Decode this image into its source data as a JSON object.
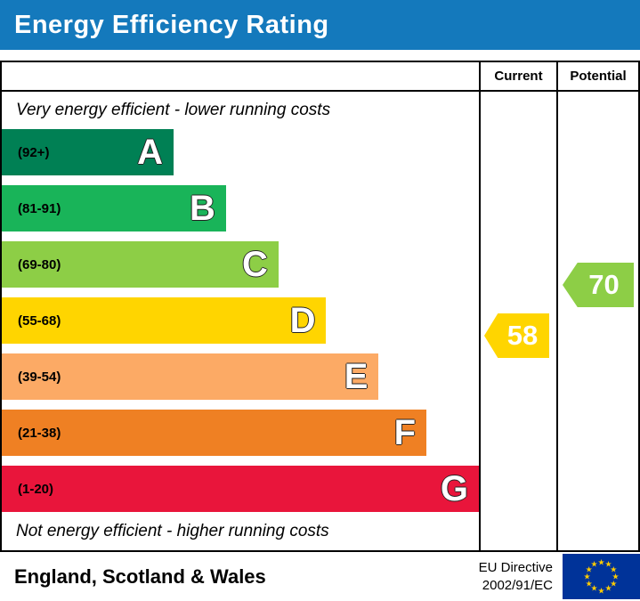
{
  "title": "Energy Efficiency Rating",
  "colors": {
    "banner": "#1479bc",
    "flag_bg": "#003399",
    "flag_star": "#ffcc00"
  },
  "table": {
    "current_header": "Current",
    "potential_header": "Potential"
  },
  "notes": {
    "top": "Very energy efficient - lower running costs",
    "bottom": "Not energy efficient - higher running costs"
  },
  "bands": [
    {
      "letter": "A",
      "range": "(92+)",
      "color": "#008054",
      "width_pct": 36
    },
    {
      "letter": "B",
      "range": "(81-91)",
      "color": "#19b459",
      "width_pct": 47
    },
    {
      "letter": "C",
      "range": "(69-80)",
      "color": "#8dce46",
      "width_pct": 58
    },
    {
      "letter": "D",
      "range": "(55-68)",
      "color": "#ffd500",
      "width_pct": 68
    },
    {
      "letter": "E",
      "range": "(39-54)",
      "color": "#fcaa65",
      "width_pct": 79
    },
    {
      "letter": "F",
      "range": "(21-38)",
      "color": "#ef8023",
      "width_pct": 89
    },
    {
      "letter": "G",
      "range": "(1-20)",
      "color": "#e9153b",
      "width_pct": 100
    }
  ],
  "ratings": {
    "current": {
      "value": "58",
      "color": "#ffd500"
    },
    "potential": {
      "value": "70",
      "color": "#8dce46"
    }
  },
  "footer": {
    "region": "England, Scotland & Wales",
    "directive_line1": "EU Directive",
    "directive_line2": "2002/91/EC"
  },
  "chart_data": {
    "type": "bar",
    "title": "Energy Efficiency Rating",
    "categories": [
      "A",
      "B",
      "C",
      "D",
      "E",
      "F",
      "G"
    ],
    "band_ranges": [
      "92+",
      "81-91",
      "69-80",
      "55-68",
      "39-54",
      "21-38",
      "1-20"
    ],
    "band_colors": [
      "#008054",
      "#19b459",
      "#8dce46",
      "#ffd500",
      "#fcaa65",
      "#ef8023",
      "#e9153b"
    ],
    "bar_width_pct": [
      36,
      47,
      58,
      68,
      79,
      89,
      100
    ],
    "current_rating": 58,
    "potential_rating": 70,
    "scale": [
      1,
      100
    ],
    "top_annotation": "Very energy efficient - lower running costs",
    "bottom_annotation": "Not energy efficient - higher running costs",
    "column_headers": [
      "Current",
      "Potential"
    ],
    "region": "England, Scotland & Wales",
    "directive": "EU Directive 2002/91/EC"
  }
}
